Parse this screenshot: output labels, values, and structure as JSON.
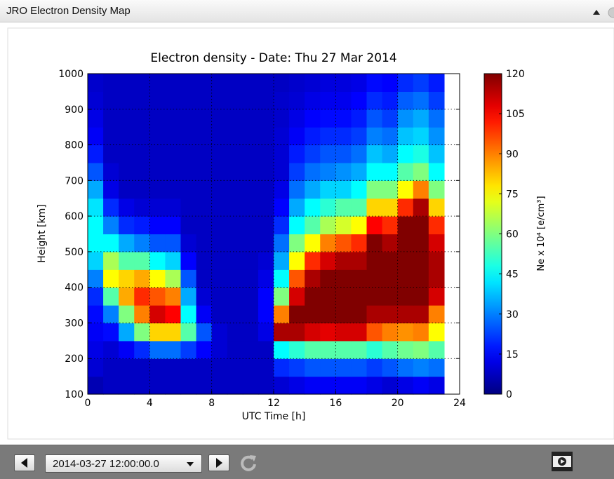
{
  "header": {
    "title": "JRO Electron Density Map"
  },
  "chart_data": {
    "type": "heatmap",
    "title": "Electron density - Date: Thu 27 Mar 2014",
    "xlabel": "UTC Time [h]",
    "ylabel": "Height [km]",
    "zlabel": "Ne x 10⁴ [e/cm³]",
    "xlim": [
      0,
      24
    ],
    "xticks": [
      0,
      4,
      8,
      12,
      16,
      20,
      24
    ],
    "ylim": [
      100,
      1000
    ],
    "yticks": [
      100,
      200,
      300,
      400,
      500,
      600,
      700,
      800,
      900,
      1000
    ],
    "zlim": [
      0,
      120
    ],
    "zticks": [
      0,
      15,
      30,
      45,
      60,
      75,
      90,
      105,
      120
    ],
    "colormap": "jet",
    "grid": true,
    "xbins": [
      0,
      1,
      2,
      3,
      4,
      5,
      6,
      7,
      8,
      9,
      10,
      11,
      12,
      13,
      14,
      15,
      16,
      17,
      18,
      19,
      20,
      21,
      22,
      23,
      24
    ],
    "ybins": [
      100,
      150,
      200,
      250,
      300,
      350,
      400,
      450,
      500,
      550,
      600,
      650,
      700,
      750,
      800,
      850,
      900,
      950,
      1000
    ],
    "z": [
      [
        6,
        8,
        8,
        8,
        8,
        8,
        8,
        8,
        8,
        8,
        8,
        8,
        10,
        12,
        14,
        14,
        14,
        14,
        12,
        10,
        12,
        14,
        12,
        null
      ],
      [
        10,
        8,
        8,
        8,
        8,
        8,
        8,
        8,
        8,
        8,
        8,
        8,
        20,
        22,
        25,
        25,
        25,
        25,
        22,
        25,
        28,
        30,
        28,
        null
      ],
      [
        12,
        10,
        14,
        20,
        28,
        28,
        22,
        15,
        10,
        8,
        8,
        8,
        45,
        50,
        55,
        55,
        55,
        55,
        50,
        55,
        58,
        60,
        55,
        null
      ],
      [
        14,
        16,
        35,
        60,
        80,
        80,
        55,
        25,
        10,
        8,
        8,
        12,
        115,
        115,
        110,
        108,
        110,
        110,
        95,
        90,
        88,
        90,
        75,
        null
      ],
      [
        16,
        30,
        60,
        90,
        110,
        105,
        45,
        14,
        8,
        8,
        8,
        15,
        90,
        120,
        120,
        120,
        120,
        120,
        115,
        115,
        115,
        115,
        90,
        null
      ],
      [
        20,
        55,
        85,
        100,
        95,
        90,
        35,
        10,
        8,
        8,
        8,
        15,
        60,
        110,
        120,
        120,
        120,
        120,
        120,
        120,
        120,
        120,
        110,
        null
      ],
      [
        30,
        75,
        80,
        85,
        75,
        65,
        25,
        8,
        8,
        8,
        8,
        12,
        45,
        95,
        115,
        120,
        120,
        120,
        120,
        120,
        120,
        120,
        115,
        null
      ],
      [
        40,
        65,
        55,
        55,
        45,
        40,
        15,
        8,
        8,
        8,
        8,
        10,
        35,
        75,
        100,
        110,
        115,
        115,
        120,
        120,
        120,
        120,
        115,
        null
      ],
      [
        45,
        45,
        35,
        30,
        25,
        25,
        10,
        8,
        8,
        8,
        8,
        8,
        28,
        60,
        75,
        90,
        95,
        100,
        120,
        115,
        120,
        120,
        110,
        null
      ],
      [
        45,
        30,
        20,
        18,
        15,
        15,
        8,
        8,
        8,
        8,
        8,
        8,
        20,
        45,
        55,
        65,
        70,
        75,
        105,
        100,
        120,
        120,
        100,
        null
      ],
      [
        42,
        20,
        12,
        10,
        10,
        10,
        8,
        8,
        8,
        8,
        8,
        8,
        15,
        35,
        45,
        50,
        55,
        55,
        80,
        80,
        100,
        115,
        80,
        null
      ],
      [
        35,
        12,
        8,
        8,
        8,
        8,
        8,
        8,
        8,
        8,
        8,
        8,
        12,
        28,
        35,
        40,
        40,
        45,
        60,
        60,
        75,
        90,
        60,
        null
      ],
      [
        25,
        10,
        8,
        8,
        8,
        8,
        8,
        8,
        8,
        8,
        8,
        8,
        10,
        22,
        28,
        30,
        32,
        35,
        45,
        45,
        55,
        60,
        45,
        null
      ],
      [
        18,
        8,
        8,
        8,
        8,
        8,
        8,
        8,
        8,
        8,
        8,
        8,
        10,
        18,
        22,
        25,
        25,
        28,
        38,
        35,
        45,
        48,
        38,
        null
      ],
      [
        14,
        8,
        8,
        8,
        8,
        8,
        8,
        8,
        8,
        8,
        8,
        8,
        10,
        14,
        18,
        20,
        20,
        22,
        30,
        28,
        38,
        40,
        32,
        null
      ],
      [
        12,
        8,
        8,
        8,
        8,
        8,
        8,
        8,
        8,
        8,
        8,
        8,
        9,
        12,
        15,
        16,
        16,
        18,
        25,
        22,
        32,
        35,
        28,
        null
      ],
      [
        10,
        8,
        8,
        8,
        8,
        8,
        8,
        8,
        8,
        8,
        8,
        8,
        9,
        10,
        12,
        13,
        13,
        15,
        20,
        18,
        26,
        28,
        22,
        null
      ],
      [
        9,
        8,
        8,
        8,
        8,
        8,
        8,
        8,
        8,
        8,
        8,
        8,
        8,
        9,
        10,
        11,
        11,
        12,
        16,
        15,
        20,
        22,
        18,
        null
      ]
    ]
  },
  "toolbar": {
    "date": "2014-03-27 12:00:00.0"
  }
}
